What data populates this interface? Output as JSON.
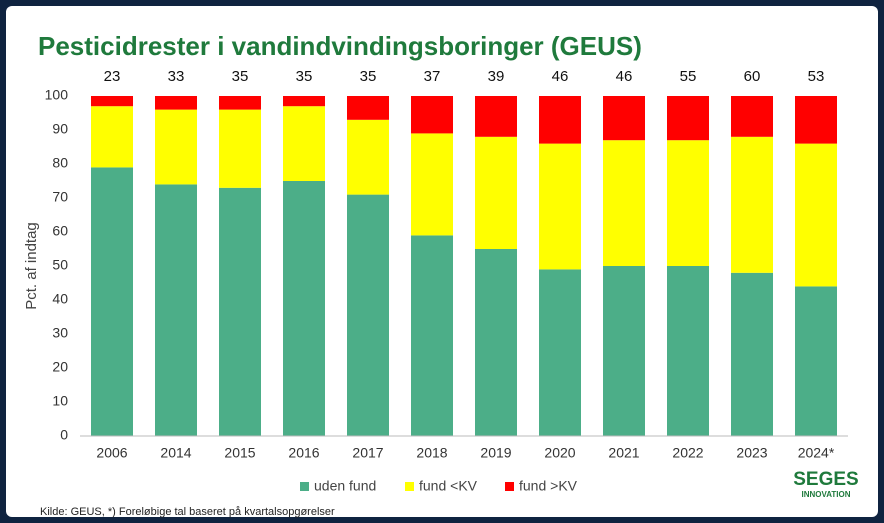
{
  "chart_data": {
    "type": "stacked_bar",
    "title": "Pesticidrester i vandindvindingsboringer (GEUS)",
    "y_label": "Pct. af indtag",
    "categories": [
      "2006",
      "2014",
      "2015",
      "2016",
      "2017",
      "2018",
      "2019",
      "2020",
      "2021",
      "2022",
      "2023",
      "2024*"
    ],
    "bar_labels": [
      23,
      33,
      35,
      35,
      35,
      37,
      39,
      46,
      46,
      55,
      60,
      53
    ],
    "series": [
      {
        "name": "uden fund",
        "color": "#4cae88",
        "values": [
          79,
          74,
          73,
          75,
          71,
          59,
          55,
          49,
          50,
          50,
          48,
          44
        ]
      },
      {
        "name": "fund <KV",
        "color": "#ffff00",
        "values": [
          18,
          22,
          23,
          22,
          22,
          30,
          33,
          37,
          37,
          37,
          40,
          42
        ]
      },
      {
        "name": "fund >KV",
        "color": "#ff0000",
        "values": [
          3,
          4,
          4,
          3,
          7,
          11,
          12,
          14,
          13,
          13,
          12,
          14
        ]
      }
    ],
    "ylim": [
      0,
      100
    ],
    "yticks": [
      0,
      10,
      20,
      30,
      40,
      50,
      60,
      70,
      80,
      90,
      100
    ],
    "grid": false,
    "legend": "bottom",
    "source": "Kilde: GEUS, *) Foreløbige tal baseret på kvartalsopgørelser",
    "logo": {
      "name": "SEGES",
      "subtitle": "INNOVATION"
    }
  }
}
